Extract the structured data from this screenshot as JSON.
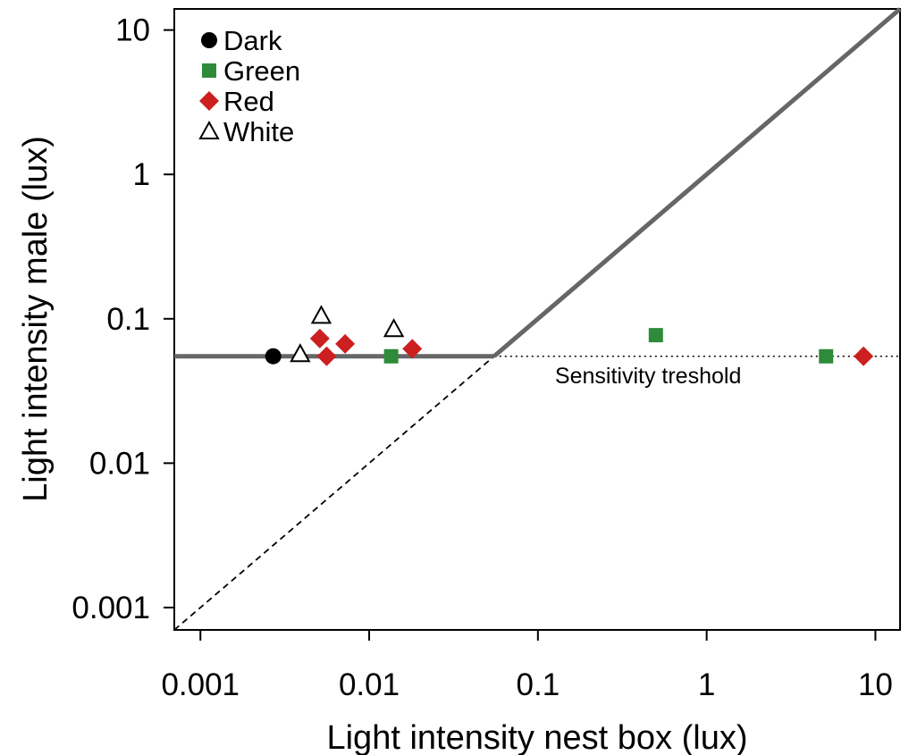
{
  "chart_data": {
    "type": "scatter",
    "xscale": "log",
    "yscale": "log",
    "xlim": [
      0.0007,
      14
    ],
    "ylim": [
      0.0007,
      14
    ],
    "xlabel": "Light intensity nest box (lux)",
    "ylabel": "Light intensity male (lux)",
    "x_ticks": [
      0.001,
      0.01,
      0.1,
      1,
      10
    ],
    "x_tick_labels": [
      "0.001",
      "0.01",
      "0.1",
      "1",
      "10"
    ],
    "y_ticks": [
      0.001,
      0.01,
      0.1,
      1,
      10
    ],
    "y_tick_labels": [
      "0.001",
      "0.01",
      "0.1",
      "1",
      "10"
    ],
    "grid": false,
    "legend_position": "top-left",
    "series": [
      {
        "name": "Dark",
        "marker": "circle",
        "color": "#000000",
        "points": [
          [
            0.0027,
            0.055
          ]
        ]
      },
      {
        "name": "Green",
        "marker": "square",
        "color": "#2e8b3a",
        "points": [
          [
            0.0135,
            0.055
          ],
          [
            0.5,
            0.077
          ],
          [
            5.1,
            0.055
          ]
        ]
      },
      {
        "name": "Red",
        "marker": "diamond",
        "color": "#cc1f1f",
        "points": [
          [
            0.0051,
            0.073
          ],
          [
            0.0056,
            0.055
          ],
          [
            0.0072,
            0.067
          ],
          [
            0.018,
            0.062
          ],
          [
            8.5,
            0.055
          ]
        ]
      },
      {
        "name": "White",
        "marker": "triangle",
        "color": "#000000",
        "points": [
          [
            0.0039,
            0.057
          ],
          [
            0.0052,
            0.105
          ],
          [
            0.014,
            0.085
          ]
        ]
      }
    ],
    "lines": {
      "threshold_value": 0.055,
      "solid_color": "#666666",
      "identity_line": "y = x"
    },
    "annotations": [
      {
        "text": "Sensitivity treshold",
        "x": 0.45,
        "y": 0.04
      }
    ]
  }
}
